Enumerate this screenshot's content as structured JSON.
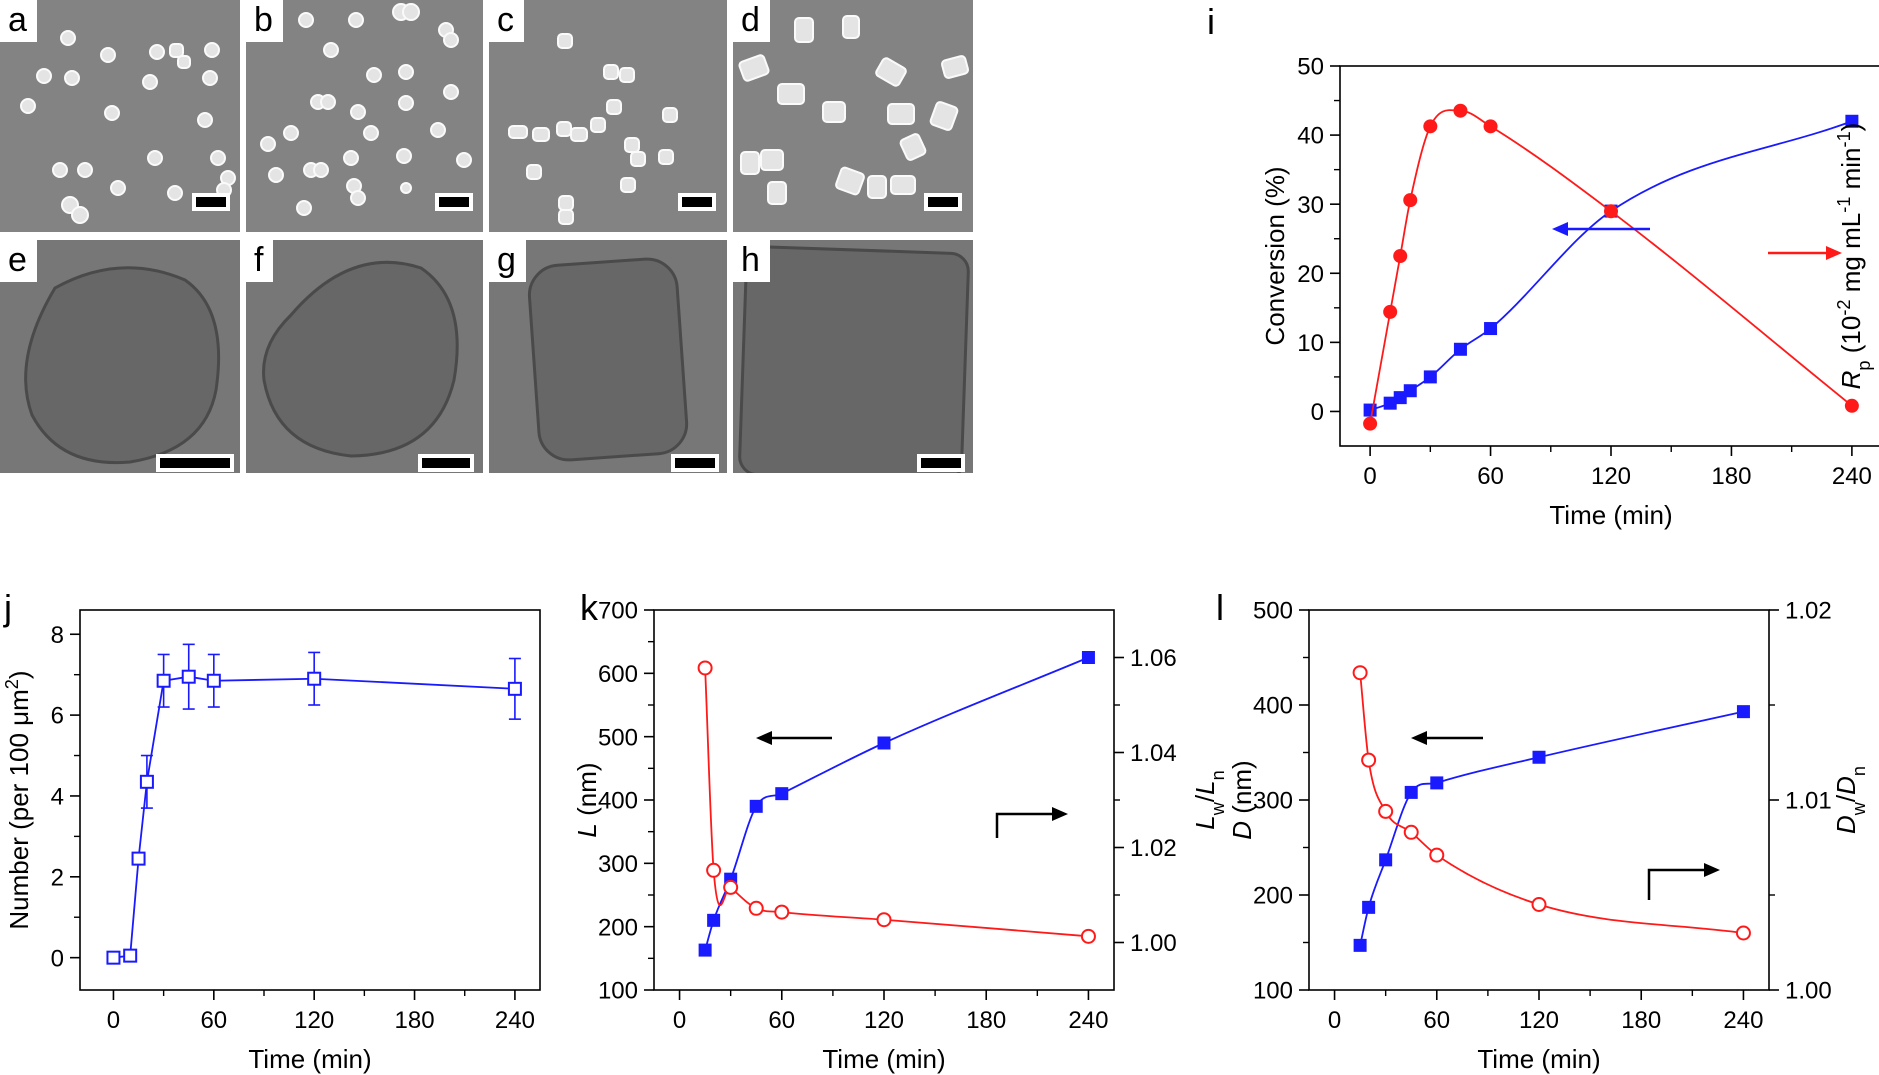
{
  "panels": {
    "a": "a",
    "b": "b",
    "c": "c",
    "d": "d",
    "e": "e",
    "f": "f",
    "g": "g",
    "h": "h",
    "i": "i",
    "j": "j",
    "k": "k",
    "l": "l"
  },
  "chart_data": [
    {
      "panel": "i",
      "type": "line",
      "xlabel": "Time (min)",
      "xticks": [
        "0",
        "60",
        "120",
        "180",
        "240"
      ],
      "xlim": [
        -15,
        255
      ],
      "ylabel_left": "Conversion (%)",
      "ylabel_right_parts": {
        "sym": "R",
        "sub": "p",
        "unit1": " (10",
        "sup1": "-2",
        "unit2": " mg mL",
        "sup2": "-1",
        "unit3": " min",
        "sup3": "-1",
        "unit4": ")"
      },
      "ylim_left": [
        -5,
        50
      ],
      "yticks_left": [
        "0",
        "10",
        "20",
        "30",
        "40",
        "50"
      ],
      "ylim_right": [
        0.9,
        2.6
      ],
      "yticks_right": [
        "1.0",
        "1.5",
        "2.0",
        "2.5"
      ],
      "series": [
        {
          "axis": "left",
          "color": "#1a1aff",
          "marker": "square-filled",
          "x": [
            0,
            10,
            15,
            20,
            30,
            45,
            60,
            120,
            240
          ],
          "y": [
            0.2,
            1.2,
            2.0,
            3.0,
            5.0,
            9.0,
            12.0,
            29.0,
            42.0
          ]
        },
        {
          "axis": "right",
          "color": "#ff1a1a",
          "marker": "circle-filled",
          "x": [
            0,
            10,
            15,
            20,
            30,
            45,
            60,
            120,
            240
          ],
          "y": [
            1.0,
            1.5,
            1.75,
            2.0,
            2.33,
            2.4,
            2.33,
            1.95,
            1.08
          ]
        }
      ]
    },
    {
      "panel": "j",
      "type": "line",
      "xlabel": "Time (min)",
      "xticks": [
        "0",
        "60",
        "120",
        "180",
        "240"
      ],
      "xlim": [
        -20,
        255
      ],
      "ylabel_left_parts": {
        "a": "Number (per 100 ",
        "mu": "μ",
        "b": "m",
        "sup": "2",
        "c": ")"
      },
      "ylim_left": [
        -0.8,
        8.6
      ],
      "yticks_left": [
        "0",
        "2",
        "4",
        "6",
        "8"
      ],
      "series": [
        {
          "axis": "left",
          "color": "#1a1aff",
          "marker": "square-open",
          "x": [
            0,
            10,
            15,
            20,
            30,
            45,
            60,
            120,
            240
          ],
          "y": [
            0,
            0.05,
            2.45,
            4.35,
            6.85,
            6.95,
            6.85,
            6.9,
            6.65
          ],
          "err": [
            0,
            0.05,
            0.1,
            0.65,
            0.65,
            0.8,
            0.65,
            0.65,
            0.75
          ]
        }
      ]
    },
    {
      "panel": "k",
      "type": "line",
      "xlabel": "Time (min)",
      "xticks": [
        "0",
        "60",
        "120",
        "180",
        "240"
      ],
      "xlim": [
        -15,
        255
      ],
      "ylabel_left_parts": {
        "sym": "L",
        "unit": " (nm)"
      },
      "ylim_left": [
        100,
        700
      ],
      "yticks_left": [
        "100",
        "200",
        "300",
        "400",
        "500",
        "600",
        "700"
      ],
      "ylabel_right_parts": {
        "a": "L",
        "a_sub": "w",
        "slash": "/",
        "b": "L",
        "b_sub": "n"
      },
      "ylim_right": [
        0.99,
        1.07
      ],
      "yticks_right": [
        "1.00",
        "1.02",
        "1.04",
        "1.06"
      ],
      "series": [
        {
          "axis": "left",
          "color": "#1a1aff",
          "marker": "square-filled",
          "x": [
            15,
            20,
            30,
            45,
            60,
            120,
            240
          ],
          "y": [
            163,
            210,
            275,
            390,
            410,
            490,
            625
          ]
        },
        {
          "axis": "right",
          "color": "#ff1a1a",
          "marker": "circle-open",
          "x": [
            15,
            20,
            30,
            45,
            60,
            120,
            240
          ],
          "y": [
            1.0578,
            1.0152,
            1.0116,
            1.0072,
            1.0064,
            1.0048,
            1.0013
          ]
        }
      ]
    },
    {
      "panel": "l",
      "type": "line",
      "xlabel": "Time (min)",
      "xticks": [
        "0",
        "60",
        "120",
        "180",
        "240"
      ],
      "xlim": [
        -15,
        255
      ],
      "ylabel_left_parts": {
        "sym": "D",
        "unit": " (nm)"
      },
      "ylim_left": [
        100,
        500
      ],
      "yticks_left": [
        "100",
        "200",
        "300",
        "400",
        "500"
      ],
      "ylabel_right_parts": {
        "a": "D",
        "a_sub": "w",
        "slash": "/",
        "b": "D",
        "b_sub": "n"
      },
      "ylim_right": [
        1.0,
        1.02
      ],
      "yticks_right": [
        "1.00",
        "1.01",
        "1.02"
      ],
      "series": [
        {
          "axis": "left",
          "color": "#1a1aff",
          "marker": "square-filled",
          "x": [
            15,
            20,
            30,
            45,
            60,
            120,
            240
          ],
          "y": [
            147,
            187,
            237,
            308,
            318,
            345,
            393
          ]
        },
        {
          "axis": "right",
          "color": "#ff1a1a",
          "marker": "circle-open",
          "x": [
            15,
            20,
            30,
            45,
            60,
            120,
            240
          ],
          "y": [
            1.0167,
            1.0121,
            1.0094,
            1.0083,
            1.0071,
            1.0045,
            1.003
          ]
        }
      ]
    }
  ]
}
